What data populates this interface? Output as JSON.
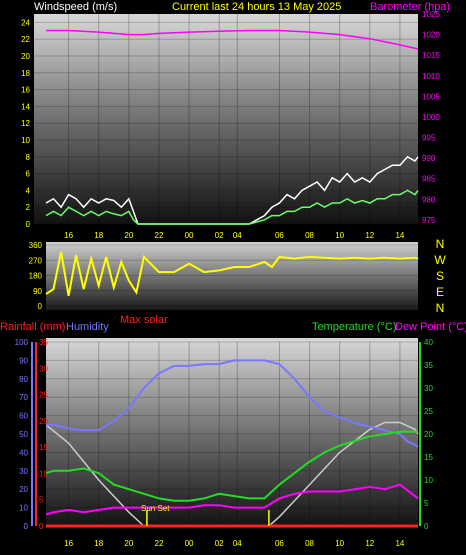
{
  "header": {
    "left": "Windspeed (m/s)",
    "center": "Current last 24 hours 13 May 2025",
    "right": "Barometer (hpa)"
  },
  "colors": {
    "wind_label": "#ffffff",
    "title": "#ffff00",
    "baro": "#ff00ff",
    "gust": "#ffffff",
    "avg_wind": "#66ff66",
    "direction": "#ffff00",
    "rain": "#ff2020",
    "humidity": "#7777ff",
    "temperature": "#22dd22",
    "dewpoint": "#ff00ff",
    "solar": "#cccccc",
    "axis": "#ffff00"
  },
  "time_labels": [
    "16",
    "18",
    "20",
    "22",
    "00",
    "02",
    "04",
    "06",
    "08",
    "10",
    "12",
    "14"
  ],
  "direction_panel": {
    "compass": [
      "N",
      "W",
      "S",
      "E",
      "N"
    ],
    "yticks": [
      "360",
      "270",
      "180",
      "90",
      "0"
    ]
  },
  "legend": {
    "max_solar": "Max solar",
    "rainfall": "Rainfall (mm)",
    "humidity": "Humidity",
    "temperature": "Temperature (°C)",
    "dewpoint": "Dew Point (°C)",
    "sunset": "Sun Set"
  },
  "chart_data": [
    {
      "type": "line",
      "name": "wind-barometer",
      "x_unit": "hours",
      "x_range": [
        14.5,
        15.3
      ],
      "left_axis": {
        "label": "Windspeed (m/s)",
        "ylim": [
          0,
          25
        ],
        "ticks": [
          0,
          2,
          4,
          6,
          8,
          10,
          12,
          14,
          16,
          18,
          20,
          22,
          24
        ]
      },
      "right_axis": {
        "label": "Barometer (hpa)",
        "ylim": [
          974,
          1025
        ],
        "ticks": [
          975,
          980,
          985,
          990,
          995,
          1000,
          1005,
          1010,
          1015,
          1020,
          1025
        ]
      },
      "series": [
        {
          "name": "gust",
          "x": [
            14.5,
            15,
            15.5,
            16,
            16.5,
            17,
            17.5,
            18,
            18.5,
            19,
            19.5,
            20,
            20.3,
            20.6,
            21,
            22,
            23,
            24,
            25,
            26,
            27,
            28,
            29,
            29.5,
            30,
            30.5,
            31,
            31.5,
            32,
            32.5,
            33,
            33.5,
            34,
            34.5,
            35,
            35.5,
            36,
            36.5,
            37,
            37.5,
            38,
            38.5,
            39,
            39.2
          ],
          "y": [
            2.5,
            3,
            2,
            3.5,
            3,
            2,
            3,
            2.5,
            3,
            2.8,
            2,
            3,
            1.5,
            0,
            0,
            0,
            0,
            0,
            0,
            0,
            0,
            0,
            1,
            2,
            2.5,
            3.5,
            3,
            4,
            4.5,
            5,
            4,
            5.5,
            5,
            6,
            5,
            5.5,
            5,
            6,
            6.5,
            7,
            7,
            8,
            7.5,
            8
          ]
        },
        {
          "name": "average",
          "x": [
            14.5,
            15,
            15.5,
            16,
            16.5,
            17,
            17.5,
            18,
            18.5,
            19,
            19.5,
            20,
            20.3,
            20.6,
            21,
            22,
            23,
            24,
            25,
            26,
            27,
            28,
            29,
            29.5,
            30,
            30.5,
            31,
            31.5,
            32,
            32.5,
            33,
            33.5,
            34,
            34.5,
            35,
            35.5,
            36,
            36.5,
            37,
            37.5,
            38,
            38.5,
            39,
            39.2
          ],
          "y": [
            1,
            1.5,
            1,
            2,
            1.5,
            1,
            1.5,
            1,
            1.5,
            1.2,
            1,
            1.5,
            0.5,
            0,
            0,
            0,
            0,
            0,
            0,
            0,
            0,
            0,
            0.5,
            1,
            1,
            1.5,
            1.5,
            2,
            2,
            2.5,
            2,
            2.5,
            2.5,
            3,
            2.5,
            2.8,
            2.5,
            3,
            3,
            3.5,
            3.5,
            4,
            3.5,
            4
          ]
        },
        {
          "name": "barometer",
          "x": [
            14.5,
            16,
            18,
            20,
            21,
            22,
            24,
            26,
            28,
            30,
            32,
            34,
            36,
            38,
            39.2
          ],
          "y": [
            1021,
            1021,
            1020.6,
            1020,
            1020,
            1020.3,
            1020.6,
            1020.8,
            1021,
            1021,
            1020.6,
            1020,
            1019,
            1017.5,
            1016.5
          ]
        }
      ]
    },
    {
      "type": "scatter",
      "name": "wind-direction",
      "ylim": [
        0,
        360
      ],
      "y_ticks": [
        0,
        90,
        180,
        270,
        360
      ],
      "series": [
        {
          "name": "direction",
          "x": [
            14.5,
            15,
            15.5,
            16,
            16.5,
            17,
            17.5,
            18,
            18.5,
            19,
            19.5,
            20,
            20.5,
            21,
            22,
            23,
            24,
            25,
            26,
            27,
            28,
            29,
            29.5,
            30,
            31,
            32,
            33,
            34,
            35,
            36,
            37,
            38,
            39,
            39.2
          ],
          "y": [
            70,
            100,
            320,
            60,
            300,
            100,
            280,
            120,
            290,
            110,
            260,
            150,
            80,
            290,
            200,
            200,
            250,
            200,
            210,
            230,
            230,
            260,
            230,
            290,
            280,
            290,
            285,
            280,
            285,
            280,
            285,
            280,
            285,
            280
          ]
        }
      ]
    },
    {
      "type": "line",
      "name": "temp-humidity",
      "left_axis_humidity": {
        "label": "Humidity",
        "ylim": [
          0,
          100
        ],
        "ticks": [
          0,
          10,
          20,
          30,
          40,
          50,
          60,
          70,
          80,
          90,
          100
        ]
      },
      "left_axis_rain": {
        "label": "Rainfall (mm)",
        "ylim": [
          0,
          35
        ],
        "ticks": [
          0,
          5,
          10,
          15,
          20,
          25,
          30,
          35
        ]
      },
      "right_axis": {
        "label": "Temperature (°C)",
        "ylim": [
          0,
          40
        ],
        "ticks": [
          0,
          5,
          10,
          15,
          20,
          25,
          30,
          35,
          40
        ]
      },
      "series": [
        {
          "name": "humidity",
          "x": [
            14.5,
            15,
            16,
            17,
            18,
            19,
            20,
            21,
            22,
            23,
            24,
            25,
            26,
            27,
            28,
            29,
            30,
            31,
            32,
            33,
            34,
            35,
            36,
            37,
            38,
            38.5,
            39,
            39.2
          ],
          "y": [
            55,
            55,
            53,
            52,
            52,
            57,
            64,
            75,
            83,
            87,
            87,
            88,
            88,
            90,
            90,
            90,
            88,
            80,
            70,
            62,
            59,
            56,
            54,
            52,
            50,
            46,
            44,
            43
          ]
        },
        {
          "name": "temperature",
          "x": [
            14.5,
            15,
            16,
            17,
            18,
            19,
            20,
            21,
            22,
            23,
            24,
            25,
            26,
            27,
            28,
            29,
            30,
            31,
            32,
            33,
            34,
            35,
            36,
            37,
            38,
            39,
            39.2
          ],
          "y": [
            11.5,
            12,
            12,
            12.5,
            11.5,
            9,
            8,
            7,
            6,
            5.5,
            5.5,
            6,
            7,
            6.5,
            6,
            6,
            9,
            11.5,
            14,
            16,
            17.5,
            18.5,
            19.5,
            20,
            20.5,
            20.5,
            20.5
          ]
        },
        {
          "name": "dewpoint",
          "x": [
            14.5,
            15,
            16,
            17,
            18,
            19,
            20,
            21,
            22,
            23,
            24,
            25,
            26,
            27,
            28,
            29,
            30,
            31,
            32,
            33,
            34,
            35,
            36,
            37,
            38,
            39,
            39.2
          ],
          "y": [
            2.5,
            3,
            3.5,
            3,
            3.5,
            4,
            4,
            4,
            4,
            4,
            4,
            4.5,
            4.5,
            4,
            4,
            4,
            6,
            7,
            7.5,
            7.5,
            7.5,
            8,
            8.5,
            8,
            9,
            6.5,
            6
          ]
        },
        {
          "name": "max_solar",
          "x": [
            14.5,
            16,
            18,
            20,
            21,
            22,
            24,
            26,
            28,
            29.3,
            30,
            32,
            34,
            36,
            37,
            38,
            39,
            39.2
          ],
          "y": [
            22,
            18,
            10,
            3,
            0,
            0,
            0,
            0,
            0,
            0,
            2,
            9,
            16,
            21,
            22.5,
            22.5,
            21,
            20
          ]
        },
        {
          "name": "rainfall",
          "x": [
            14.5,
            39.2
          ],
          "y": [
            0,
            0
          ]
        }
      ],
      "markers": [
        {
          "label": "Sun Set",
          "x": 21.2
        },
        {
          "label": "",
          "x": 29.3
        }
      ]
    }
  ]
}
